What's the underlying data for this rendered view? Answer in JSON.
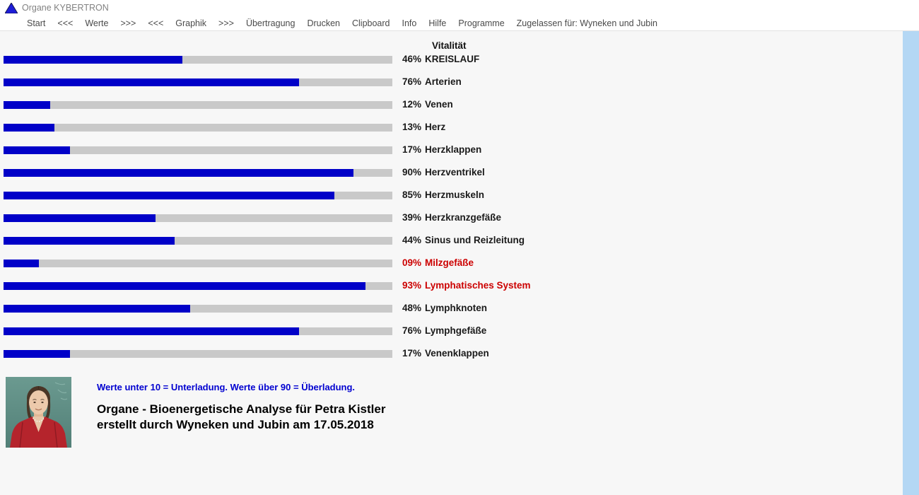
{
  "window": {
    "title": "Organe KYBERTRON",
    "icon": "triangle-icon"
  },
  "menu": {
    "items": [
      "Start",
      "<<<",
      "Werte",
      ">>>",
      "<<<",
      "Graphik",
      ">>>",
      "Übertragung",
      "Drucken",
      "Clipboard",
      "Info",
      "Hilfe",
      "Programme"
    ],
    "right_note": "Zugelassen für: Wyneken und Jubin"
  },
  "chart_data": {
    "type": "bar",
    "orientation": "horizontal",
    "title": "Vitalität",
    "xlim": [
      0,
      100
    ],
    "bar_color": "#0101c8",
    "track_color": "#c9c9c9",
    "alert_color": "#cc0000",
    "rows": [
      {
        "label": "KREISLAUF",
        "value": 46,
        "pct_text": "46%",
        "alert": false
      },
      {
        "label": "Arterien",
        "value": 76,
        "pct_text": "76%",
        "alert": false
      },
      {
        "label": "Venen",
        "value": 12,
        "pct_text": "12%",
        "alert": false
      },
      {
        "label": "Herz",
        "value": 13,
        "pct_text": "13%",
        "alert": false
      },
      {
        "label": "Herzklappen",
        "value": 17,
        "pct_text": "17%",
        "alert": false
      },
      {
        "label": "Herzventrikel",
        "value": 90,
        "pct_text": "90%",
        "alert": false
      },
      {
        "label": "Herzmuskeln",
        "value": 85,
        "pct_text": "85%",
        "alert": false
      },
      {
        "label": "Herzkranzgefäße",
        "value": 39,
        "pct_text": "39%",
        "alert": false
      },
      {
        "label": "Sinus und Reizleitung",
        "value": 44,
        "pct_text": "44%",
        "alert": false
      },
      {
        "label": "Milzgefäße",
        "value": 9,
        "pct_text": "09%",
        "alert": true
      },
      {
        "label": "Lymphatisches System",
        "value": 93,
        "pct_text": "93%",
        "alert": true
      },
      {
        "label": "Lymphknoten",
        "value": 48,
        "pct_text": "48%",
        "alert": false
      },
      {
        "label": "Lymphgefäße",
        "value": 76,
        "pct_text": "76%",
        "alert": false
      },
      {
        "label": "Venenklappen",
        "value": 17,
        "pct_text": "17%",
        "alert": false
      }
    ]
  },
  "footer": {
    "note": "Werte unter 10 = Unterladung. Werte über 90 = Überladung.",
    "title_line1": "Organe - Bioenergetische Analyse für Petra Kistler",
    "title_line2": "erstellt durch Wyneken und Jubin am 17.05.2018",
    "photo": "portrait-petra-kistler"
  }
}
